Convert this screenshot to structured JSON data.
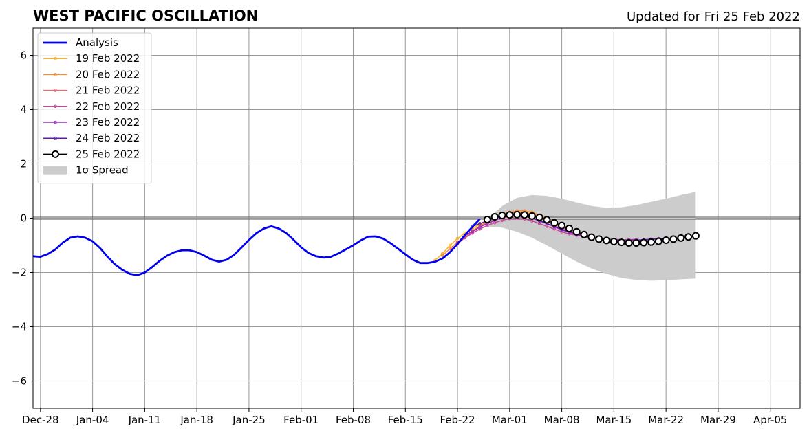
{
  "chart_data": {
    "type": "line",
    "title": "WEST PACIFIC OSCILLATION",
    "subtitle": "Updated for Fri 25 Feb 2022",
    "xlabel": "",
    "ylabel": "",
    "x_range": [
      "2021-12-27",
      "2022-04-09"
    ],
    "ylim": [
      -7,
      7
    ],
    "grid": true,
    "legend_position": "upper-left",
    "x_ticks": [
      {
        "date": "2021-12-28",
        "label": "Dec-28"
      },
      {
        "date": "2022-01-04",
        "label": "Jan-04"
      },
      {
        "date": "2022-01-11",
        "label": "Jan-11"
      },
      {
        "date": "2022-01-18",
        "label": "Jan-18"
      },
      {
        "date": "2022-01-25",
        "label": "Jan-25"
      },
      {
        "date": "2022-02-01",
        "label": "Feb-01"
      },
      {
        "date": "2022-02-08",
        "label": "Feb-08"
      },
      {
        "date": "2022-02-15",
        "label": "Feb-15"
      },
      {
        "date": "2022-02-22",
        "label": "Feb-22"
      },
      {
        "date": "2022-03-01",
        "label": "Mar-01"
      },
      {
        "date": "2022-03-08",
        "label": "Mar-08"
      },
      {
        "date": "2022-03-15",
        "label": "Mar-15"
      },
      {
        "date": "2022-03-22",
        "label": "Mar-22"
      },
      {
        "date": "2022-03-29",
        "label": "Mar-29"
      },
      {
        "date": "2022-04-05",
        "label": "Apr-05"
      }
    ],
    "y_ticks": [
      {
        "value": 6,
        "label": "6"
      },
      {
        "value": 4,
        "label": "4"
      },
      {
        "value": 2,
        "label": "2"
      },
      {
        "value": 0,
        "label": "0"
      },
      {
        "value": -2,
        "label": "−2"
      },
      {
        "value": -4,
        "label": "−4"
      },
      {
        "value": -6,
        "label": "−6"
      }
    ],
    "analysis": {
      "name": "Analysis",
      "color": "#0000ee",
      "points": [
        [
          "2021-12-27",
          -1.4
        ],
        [
          "2021-12-28",
          -1.42
        ],
        [
          "2021-12-29",
          -1.32
        ],
        [
          "2021-12-30",
          -1.15
        ],
        [
          "2021-12-31",
          -0.9
        ],
        [
          "2022-01-01",
          -0.72
        ],
        [
          "2022-01-02",
          -0.67
        ],
        [
          "2022-01-03",
          -0.72
        ],
        [
          "2022-01-04",
          -0.85
        ],
        [
          "2022-01-05",
          -1.1
        ],
        [
          "2022-01-06",
          -1.42
        ],
        [
          "2022-01-07",
          -1.7
        ],
        [
          "2022-01-08",
          -1.9
        ],
        [
          "2022-01-09",
          -2.05
        ],
        [
          "2022-01-10",
          -2.1
        ],
        [
          "2022-01-11",
          -2.0
        ],
        [
          "2022-01-12",
          -1.8
        ],
        [
          "2022-01-13",
          -1.57
        ],
        [
          "2022-01-14",
          -1.38
        ],
        [
          "2022-01-15",
          -1.25
        ],
        [
          "2022-01-16",
          -1.18
        ],
        [
          "2022-01-17",
          -1.18
        ],
        [
          "2022-01-18",
          -1.25
        ],
        [
          "2022-01-19",
          -1.38
        ],
        [
          "2022-01-20",
          -1.53
        ],
        [
          "2022-01-21",
          -1.6
        ],
        [
          "2022-01-22",
          -1.53
        ],
        [
          "2022-01-23",
          -1.35
        ],
        [
          "2022-01-24",
          -1.08
        ],
        [
          "2022-01-25",
          -0.8
        ],
        [
          "2022-01-26",
          -0.55
        ],
        [
          "2022-01-27",
          -0.38
        ],
        [
          "2022-01-28",
          -0.3
        ],
        [
          "2022-01-29",
          -0.38
        ],
        [
          "2022-01-30",
          -0.55
        ],
        [
          "2022-01-31",
          -0.8
        ],
        [
          "2022-02-01",
          -1.07
        ],
        [
          "2022-02-02",
          -1.28
        ],
        [
          "2022-02-03",
          -1.4
        ],
        [
          "2022-02-04",
          -1.45
        ],
        [
          "2022-02-05",
          -1.42
        ],
        [
          "2022-02-06",
          -1.3
        ],
        [
          "2022-02-07",
          -1.15
        ],
        [
          "2022-02-08",
          -1.0
        ],
        [
          "2022-02-09",
          -0.82
        ],
        [
          "2022-02-10",
          -0.68
        ],
        [
          "2022-02-11",
          -0.67
        ],
        [
          "2022-02-12",
          -0.75
        ],
        [
          "2022-02-13",
          -0.92
        ],
        [
          "2022-02-14",
          -1.12
        ],
        [
          "2022-02-15",
          -1.33
        ],
        [
          "2022-02-16",
          -1.53
        ],
        [
          "2022-02-17",
          -1.65
        ],
        [
          "2022-02-18",
          -1.65
        ],
        [
          "2022-02-19",
          -1.6
        ],
        [
          "2022-02-20",
          -1.48
        ],
        [
          "2022-02-21",
          -1.25
        ],
        [
          "2022-02-22",
          -0.95
        ],
        [
          "2022-02-23",
          -0.62
        ],
        [
          "2022-02-24",
          -0.32
        ],
        [
          "2022-02-25",
          -0.03
        ]
      ]
    },
    "forecasts": [
      {
        "name": "19 Feb 2022",
        "color": "#ffb01e",
        "points": [
          [
            "2022-02-19",
            -1.55
          ],
          [
            "2022-02-20",
            -1.3
          ],
          [
            "2022-02-21",
            -1.0
          ],
          [
            "2022-02-22",
            -0.75
          ],
          [
            "2022-02-23",
            -0.55
          ],
          [
            "2022-02-24",
            -0.38
          ],
          [
            "2022-02-25",
            -0.22
          ],
          [
            "2022-02-26",
            -0.08
          ],
          [
            "2022-02-27",
            0.05
          ],
          [
            "2022-02-28",
            0.15
          ],
          [
            "2022-03-01",
            0.22
          ],
          [
            "2022-03-02",
            0.27
          ],
          [
            "2022-03-03",
            0.26
          ],
          [
            "2022-03-04",
            0.2
          ],
          [
            "2022-03-05",
            0.1
          ],
          [
            "2022-03-06",
            -0.02
          ],
          [
            "2022-03-07",
            -0.15
          ],
          [
            "2022-03-08",
            -0.28
          ],
          [
            "2022-03-09",
            -0.4
          ],
          [
            "2022-03-10",
            -0.5
          ]
        ]
      },
      {
        "name": "20 Feb 2022",
        "color": "#f28e3a",
        "points": [
          [
            "2022-02-20",
            -1.38
          ],
          [
            "2022-02-21",
            -1.12
          ],
          [
            "2022-02-22",
            -0.88
          ],
          [
            "2022-02-23",
            -0.66
          ],
          [
            "2022-02-24",
            -0.46
          ],
          [
            "2022-02-25",
            -0.28
          ],
          [
            "2022-02-26",
            -0.12
          ],
          [
            "2022-02-27",
            0.02
          ],
          [
            "2022-02-28",
            0.14
          ],
          [
            "2022-03-01",
            0.22
          ],
          [
            "2022-03-02",
            0.27
          ],
          [
            "2022-03-03",
            0.27
          ],
          [
            "2022-03-04",
            0.22
          ],
          [
            "2022-03-05",
            0.12
          ],
          [
            "2022-03-06",
            0.0
          ],
          [
            "2022-03-07",
            -0.13
          ],
          [
            "2022-03-08",
            -0.26
          ],
          [
            "2022-03-09",
            -0.38
          ],
          [
            "2022-03-10",
            -0.48
          ],
          [
            "2022-03-11",
            -0.56
          ]
        ]
      },
      {
        "name": "21 Feb 2022",
        "color": "#e56b6f",
        "points": [
          [
            "2022-02-21",
            -1.18
          ],
          [
            "2022-02-22",
            -0.95
          ],
          [
            "2022-02-23",
            -0.72
          ],
          [
            "2022-02-24",
            -0.5
          ],
          [
            "2022-02-25",
            -0.32
          ],
          [
            "2022-02-26",
            -0.16
          ],
          [
            "2022-02-27",
            -0.02
          ],
          [
            "2022-02-28",
            0.1
          ],
          [
            "2022-03-01",
            0.18
          ],
          [
            "2022-03-02",
            0.22
          ],
          [
            "2022-03-03",
            0.2
          ],
          [
            "2022-03-04",
            0.14
          ],
          [
            "2022-03-05",
            0.03
          ],
          [
            "2022-03-06",
            -0.1
          ],
          [
            "2022-03-07",
            -0.23
          ],
          [
            "2022-03-08",
            -0.35
          ],
          [
            "2022-03-09",
            -0.45
          ],
          [
            "2022-03-10",
            -0.53
          ],
          [
            "2022-03-11",
            -0.6
          ],
          [
            "2022-03-12",
            -0.65
          ]
        ]
      },
      {
        "name": "22 Feb 2022",
        "color": "#c8479a",
        "points": [
          [
            "2022-02-22",
            -0.9
          ],
          [
            "2022-02-23",
            -0.72
          ],
          [
            "2022-02-24",
            -0.55
          ],
          [
            "2022-02-25",
            -0.4
          ],
          [
            "2022-02-26",
            -0.27
          ],
          [
            "2022-02-27",
            -0.17
          ],
          [
            "2022-02-28",
            -0.08
          ],
          [
            "2022-03-01",
            -0.02
          ],
          [
            "2022-03-02",
            0.0
          ],
          [
            "2022-03-03",
            -0.03
          ],
          [
            "2022-03-04",
            -0.1
          ],
          [
            "2022-03-05",
            -0.2
          ],
          [
            "2022-03-06",
            -0.3
          ],
          [
            "2022-03-07",
            -0.4
          ],
          [
            "2022-03-08",
            -0.5
          ],
          [
            "2022-03-09",
            -0.58
          ],
          [
            "2022-03-10",
            -0.63
          ],
          [
            "2022-03-11",
            -0.68
          ],
          [
            "2022-03-12",
            -0.72
          ],
          [
            "2022-03-13",
            -0.75
          ],
          [
            "2022-03-14",
            -0.77
          ],
          [
            "2022-03-15",
            -0.78
          ],
          [
            "2022-03-16",
            -0.79
          ],
          [
            "2022-03-17",
            -0.79
          ],
          [
            "2022-03-18",
            -0.78
          ]
        ]
      },
      {
        "name": "23 Feb 2022",
        "color": "#9a2bc0",
        "points": [
          [
            "2022-02-23",
            -0.65
          ],
          [
            "2022-02-24",
            -0.48
          ],
          [
            "2022-02-25",
            -0.33
          ],
          [
            "2022-02-26",
            -0.2
          ],
          [
            "2022-02-27",
            -0.08
          ],
          [
            "2022-02-28",
            0.02
          ],
          [
            "2022-03-01",
            0.08
          ],
          [
            "2022-03-02",
            0.1
          ],
          [
            "2022-03-03",
            0.08
          ],
          [
            "2022-03-04",
            0.02
          ],
          [
            "2022-03-05",
            -0.08
          ],
          [
            "2022-03-06",
            -0.2
          ],
          [
            "2022-03-07",
            -0.32
          ],
          [
            "2022-03-08",
            -0.43
          ],
          [
            "2022-03-09",
            -0.52
          ],
          [
            "2022-03-10",
            -0.6
          ],
          [
            "2022-03-11",
            -0.67
          ],
          [
            "2022-03-12",
            -0.72
          ],
          [
            "2022-03-13",
            -0.76
          ],
          [
            "2022-03-14",
            -0.78
          ],
          [
            "2022-03-15",
            -0.8
          ],
          [
            "2022-03-16",
            -0.81
          ],
          [
            "2022-03-17",
            -0.81
          ],
          [
            "2022-03-18",
            -0.8
          ],
          [
            "2022-03-19",
            -0.79
          ],
          [
            "2022-03-20",
            -0.77
          ],
          [
            "2022-03-21",
            -0.75
          ]
        ]
      },
      {
        "name": "24 Feb 2022",
        "color": "#5a1fa0",
        "points": [
          [
            "2022-02-24",
            -0.3
          ],
          [
            "2022-02-25",
            -0.2
          ],
          [
            "2022-02-26",
            -0.1
          ],
          [
            "2022-02-27",
            0.0
          ],
          [
            "2022-02-28",
            0.08
          ],
          [
            "2022-03-01",
            0.12
          ],
          [
            "2022-03-02",
            0.12
          ],
          [
            "2022-03-03",
            0.08
          ],
          [
            "2022-03-04",
            0.0
          ],
          [
            "2022-03-05",
            -0.1
          ],
          [
            "2022-03-06",
            -0.2
          ],
          [
            "2022-03-07",
            -0.3
          ],
          [
            "2022-03-08",
            -0.4
          ],
          [
            "2022-03-09",
            -0.5
          ],
          [
            "2022-03-10",
            -0.58
          ],
          [
            "2022-03-11",
            -0.65
          ],
          [
            "2022-03-12",
            -0.7
          ],
          [
            "2022-03-13",
            -0.75
          ],
          [
            "2022-03-14",
            -0.78
          ],
          [
            "2022-03-15",
            -0.8
          ],
          [
            "2022-03-16",
            -0.82
          ],
          [
            "2022-03-17",
            -0.82
          ],
          [
            "2022-03-18",
            -0.82
          ],
          [
            "2022-03-19",
            -0.8
          ],
          [
            "2022-03-20",
            -0.78
          ],
          [
            "2022-03-21",
            -0.76
          ],
          [
            "2022-03-22",
            -0.74
          ]
        ]
      },
      {
        "name": "25 Feb 2022",
        "color": "#000000",
        "points": [
          [
            "2022-02-26",
            -0.05
          ],
          [
            "2022-02-27",
            0.05
          ],
          [
            "2022-02-28",
            0.1
          ],
          [
            "2022-03-01",
            0.12
          ],
          [
            "2022-03-02",
            0.13
          ],
          [
            "2022-03-03",
            0.12
          ],
          [
            "2022-03-04",
            0.08
          ],
          [
            "2022-03-05",
            0.03
          ],
          [
            "2022-03-06",
            -0.06
          ],
          [
            "2022-03-07",
            -0.17
          ],
          [
            "2022-03-08",
            -0.27
          ],
          [
            "2022-03-09",
            -0.38
          ],
          [
            "2022-03-10",
            -0.5
          ],
          [
            "2022-03-11",
            -0.6
          ],
          [
            "2022-03-12",
            -0.7
          ],
          [
            "2022-03-13",
            -0.77
          ],
          [
            "2022-03-14",
            -0.82
          ],
          [
            "2022-03-15",
            -0.86
          ],
          [
            "2022-03-16",
            -0.89
          ],
          [
            "2022-03-17",
            -0.91
          ],
          [
            "2022-03-18",
            -0.91
          ],
          [
            "2022-03-19",
            -0.9
          ],
          [
            "2022-03-20",
            -0.88
          ],
          [
            "2022-03-21",
            -0.85
          ],
          [
            "2022-03-22",
            -0.81
          ],
          [
            "2022-03-23",
            -0.77
          ],
          [
            "2022-03-24",
            -0.73
          ],
          [
            "2022-03-25",
            -0.69
          ],
          [
            "2022-03-26",
            -0.65
          ]
        ]
      }
    ],
    "spread": {
      "name": "1σ Spread",
      "color": "#cccccc",
      "upper": [
        [
          "2022-02-26",
          -0.05
        ],
        [
          "2022-02-28",
          0.45
        ],
        [
          "2022-03-02",
          0.75
        ],
        [
          "2022-03-04",
          0.85
        ],
        [
          "2022-03-06",
          0.82
        ],
        [
          "2022-03-08",
          0.72
        ],
        [
          "2022-03-10",
          0.58
        ],
        [
          "2022-03-12",
          0.45
        ],
        [
          "2022-03-14",
          0.38
        ],
        [
          "2022-03-16",
          0.4
        ],
        [
          "2022-03-18",
          0.48
        ],
        [
          "2022-03-20",
          0.6
        ],
        [
          "2022-03-22",
          0.72
        ],
        [
          "2022-03-24",
          0.85
        ],
        [
          "2022-03-26",
          0.97
        ]
      ],
      "lower": [
        [
          "2022-02-26",
          -0.32
        ],
        [
          "2022-02-28",
          -0.35
        ],
        [
          "2022-03-02",
          -0.5
        ],
        [
          "2022-03-04",
          -0.72
        ],
        [
          "2022-03-06",
          -1.0
        ],
        [
          "2022-03-08",
          -1.3
        ],
        [
          "2022-03-10",
          -1.6
        ],
        [
          "2022-03-12",
          -1.85
        ],
        [
          "2022-03-14",
          -2.05
        ],
        [
          "2022-03-16",
          -2.2
        ],
        [
          "2022-03-18",
          -2.27
        ],
        [
          "2022-03-20",
          -2.3
        ],
        [
          "2022-03-22",
          -2.28
        ],
        [
          "2022-03-24",
          -2.25
        ],
        [
          "2022-03-26",
          -2.22
        ]
      ]
    }
  }
}
